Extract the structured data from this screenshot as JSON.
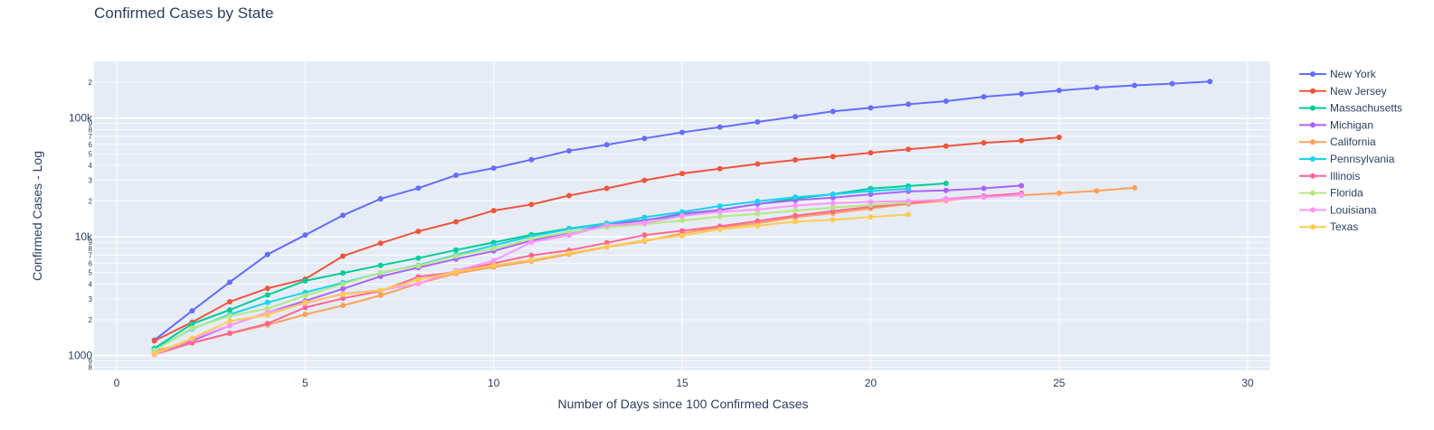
{
  "chart_data": {
    "type": "line",
    "title": "Confirmed Cases by State",
    "xlabel": "Number of Days since 100 Confirmed Cases",
    "ylabel": "Confirmed Cases - Log",
    "y_scale": "log",
    "xlim": [
      -0.6,
      30.6
    ],
    "ylim": [
      750,
      300000
    ],
    "grid": true,
    "legend_position": "right",
    "x_ticks": [
      0,
      5,
      10,
      15,
      20,
      25,
      30
    ],
    "y_major_ticks": [
      {
        "value": 1000,
        "label": "1000"
      },
      {
        "value": 10000,
        "label": "10k"
      },
      {
        "value": 100000,
        "label": "100k"
      }
    ],
    "y_minor_ticks": [
      {
        "value": 800,
        "label": "8"
      },
      {
        "value": 900,
        "label": "9"
      },
      {
        "value": 2000,
        "label": "2"
      },
      {
        "value": 3000,
        "label": "3"
      },
      {
        "value": 4000,
        "label": "4"
      },
      {
        "value": 5000,
        "label": "5"
      },
      {
        "value": 6000,
        "label": "6"
      },
      {
        "value": 7000,
        "label": "7"
      },
      {
        "value": 8000,
        "label": "8"
      },
      {
        "value": 9000,
        "label": "9"
      },
      {
        "value": 20000,
        "label": "2"
      },
      {
        "value": 30000,
        "label": "3"
      },
      {
        "value": 40000,
        "label": "4"
      },
      {
        "value": 50000,
        "label": "5"
      },
      {
        "value": 60000,
        "label": "6"
      },
      {
        "value": 70000,
        "label": "7"
      },
      {
        "value": 80000,
        "label": "8"
      },
      {
        "value": 90000,
        "label": "9"
      },
      {
        "value": 200000,
        "label": "2"
      }
    ],
    "series": [
      {
        "name": "New York",
        "color": "#636efa",
        "x": [
          1,
          2,
          3,
          4,
          5,
          6,
          7,
          8,
          9,
          10,
          11,
          12,
          13,
          14,
          15,
          16,
          17,
          18,
          19,
          20,
          21,
          22,
          23,
          24,
          25,
          26,
          27,
          28,
          29
        ],
        "values": [
          1350,
          2380,
          4150,
          7100,
          10350,
          15150,
          20900,
          25700,
          33000,
          37900,
          44600,
          53000,
          59600,
          67400,
          75900,
          84000,
          92800,
          102800,
          113800,
          122000,
          130700,
          138900,
          151100,
          159900,
          170800,
          180500,
          188700,
          195000,
          203000
        ]
      },
      {
        "name": "New Jersey",
        "color": "#ef553b",
        "x": [
          1,
          2,
          3,
          4,
          5,
          6,
          7,
          8,
          9,
          10,
          11,
          12,
          13,
          14,
          15,
          16,
          17,
          18,
          19,
          20,
          21,
          22,
          23,
          24,
          25
        ],
        "values": [
          1330,
          1910,
          2840,
          3680,
          4400,
          6880,
          8830,
          11120,
          13380,
          16640,
          18700,
          22260,
          25600,
          29900,
          34120,
          37500,
          41100,
          44400,
          47400,
          51000,
          54600,
          58100,
          61850,
          64600,
          68800
        ]
      },
      {
        "name": "Massachusetts",
        "color": "#00cc96",
        "x": [
          1,
          2,
          3,
          4,
          5,
          6,
          7,
          8,
          9,
          10,
          11,
          12,
          13,
          14,
          15,
          16,
          17,
          18,
          19,
          20,
          21,
          22
        ],
        "values": [
          1150,
          1850,
          2420,
          3240,
          4260,
          4950,
          5750,
          6620,
          7740,
          8960,
          10400,
          11740,
          13000,
          13800,
          15200,
          16800,
          18900,
          20970,
          22860,
          25500,
          26800,
          28160
        ]
      },
      {
        "name": "Michigan",
        "color": "#ab63fa",
        "x": [
          1,
          2,
          3,
          4,
          5,
          6,
          7,
          8,
          9,
          10,
          11,
          12,
          13,
          14,
          15,
          16,
          17,
          18,
          19,
          20,
          21,
          22,
          23,
          24
        ],
        "values": [
          1040,
          1330,
          1790,
          2300,
          2880,
          3650,
          4650,
          5500,
          6500,
          7600,
          9300,
          10800,
          12700,
          13700,
          15700,
          16800,
          18900,
          20300,
          21400,
          22800,
          24100,
          24600,
          25600,
          27000
        ]
      },
      {
        "name": "California",
        "color": "#ffa15a",
        "x": [
          1,
          2,
          3,
          4,
          5,
          6,
          7,
          8,
          9,
          10,
          11,
          12,
          13,
          14,
          15,
          16,
          17,
          18,
          19,
          20,
          21,
          22,
          23,
          24,
          25,
          26,
          27
        ],
        "values": [
          1100,
          1280,
          1530,
          1810,
          2220,
          2640,
          3210,
          4040,
          4910,
          5560,
          6240,
          7140,
          8200,
          9190,
          10700,
          12000,
          13000,
          14600,
          15800,
          17300,
          18900,
          20200,
          21800,
          22400,
          23300,
          24400,
          25900
        ]
      },
      {
        "name": "Pennsylvania",
        "color": "#19d3f3",
        "x": [
          1,
          2,
          3,
          4,
          5,
          6,
          7,
          8,
          9,
          10,
          11,
          12,
          13,
          14,
          15,
          16,
          17,
          18,
          19,
          20,
          21
        ],
        "values": [
          1130,
          1680,
          2220,
          2800,
          3400,
          4100,
          4970,
          5760,
          7040,
          8470,
          10100,
          11600,
          12900,
          14600,
          16200,
          18200,
          19900,
          21600,
          22800,
          24300,
          25400
        ]
      },
      {
        "name": "Illinois",
        "color": "#ff6692",
        "x": [
          1,
          2,
          3,
          4,
          5,
          6,
          7,
          8,
          9,
          10,
          11,
          12,
          13,
          14,
          15,
          16,
          17,
          18,
          19,
          20,
          21,
          22,
          23,
          24
        ],
        "values": [
          1020,
          1280,
          1540,
          1860,
          2540,
          3030,
          3490,
          4600,
          5060,
          5990,
          6980,
          7700,
          8900,
          10350,
          11260,
          12260,
          13550,
          15080,
          16420,
          17900,
          19180,
          20850,
          22030,
          23250
        ]
      },
      {
        "name": "Florida",
        "color": "#b6e880",
        "x": [
          1,
          2,
          3,
          4,
          5,
          6,
          7,
          8,
          9,
          10,
          11,
          12,
          13,
          14,
          15,
          16,
          17,
          18,
          19,
          20,
          21
        ],
        "values": [
          1100,
          1700,
          2160,
          2480,
          3200,
          4000,
          5000,
          5700,
          6900,
          8000,
          9600,
          11000,
          12000,
          12800,
          13700,
          14800,
          15600,
          16600,
          17600,
          18500,
          19400
        ]
      },
      {
        "name": "Louisiana",
        "color": "#ff97ff",
        "x": [
          1,
          2,
          3,
          4,
          5,
          6,
          7,
          8,
          9,
          10,
          11,
          12,
          13,
          14,
          15,
          16,
          17,
          18,
          19,
          20,
          21,
          22,
          23,
          24
        ],
        "values": [
          1020,
          1380,
          1790,
          2300,
          2750,
          3320,
          3540,
          4030,
          5190,
          6300,
          9000,
          10300,
          12500,
          13000,
          15000,
          16200,
          17000,
          18300,
          19200,
          19700,
          20000,
          20600,
          21500,
          22500
        ]
      },
      {
        "name": "Texas",
        "color": "#fecb52",
        "x": [
          1,
          2,
          3,
          4,
          5,
          6,
          7,
          8,
          9,
          10,
          11,
          12,
          13,
          14,
          15,
          16,
          17,
          18,
          19,
          20,
          21
        ],
        "values": [
          1030,
          1400,
          1950,
          2200,
          2800,
          3270,
          3540,
          4350,
          5070,
          5750,
          6380,
          7280,
          8260,
          9350,
          10230,
          11570,
          12400,
          13400,
          13910,
          14700,
          15400
        ]
      }
    ]
  }
}
